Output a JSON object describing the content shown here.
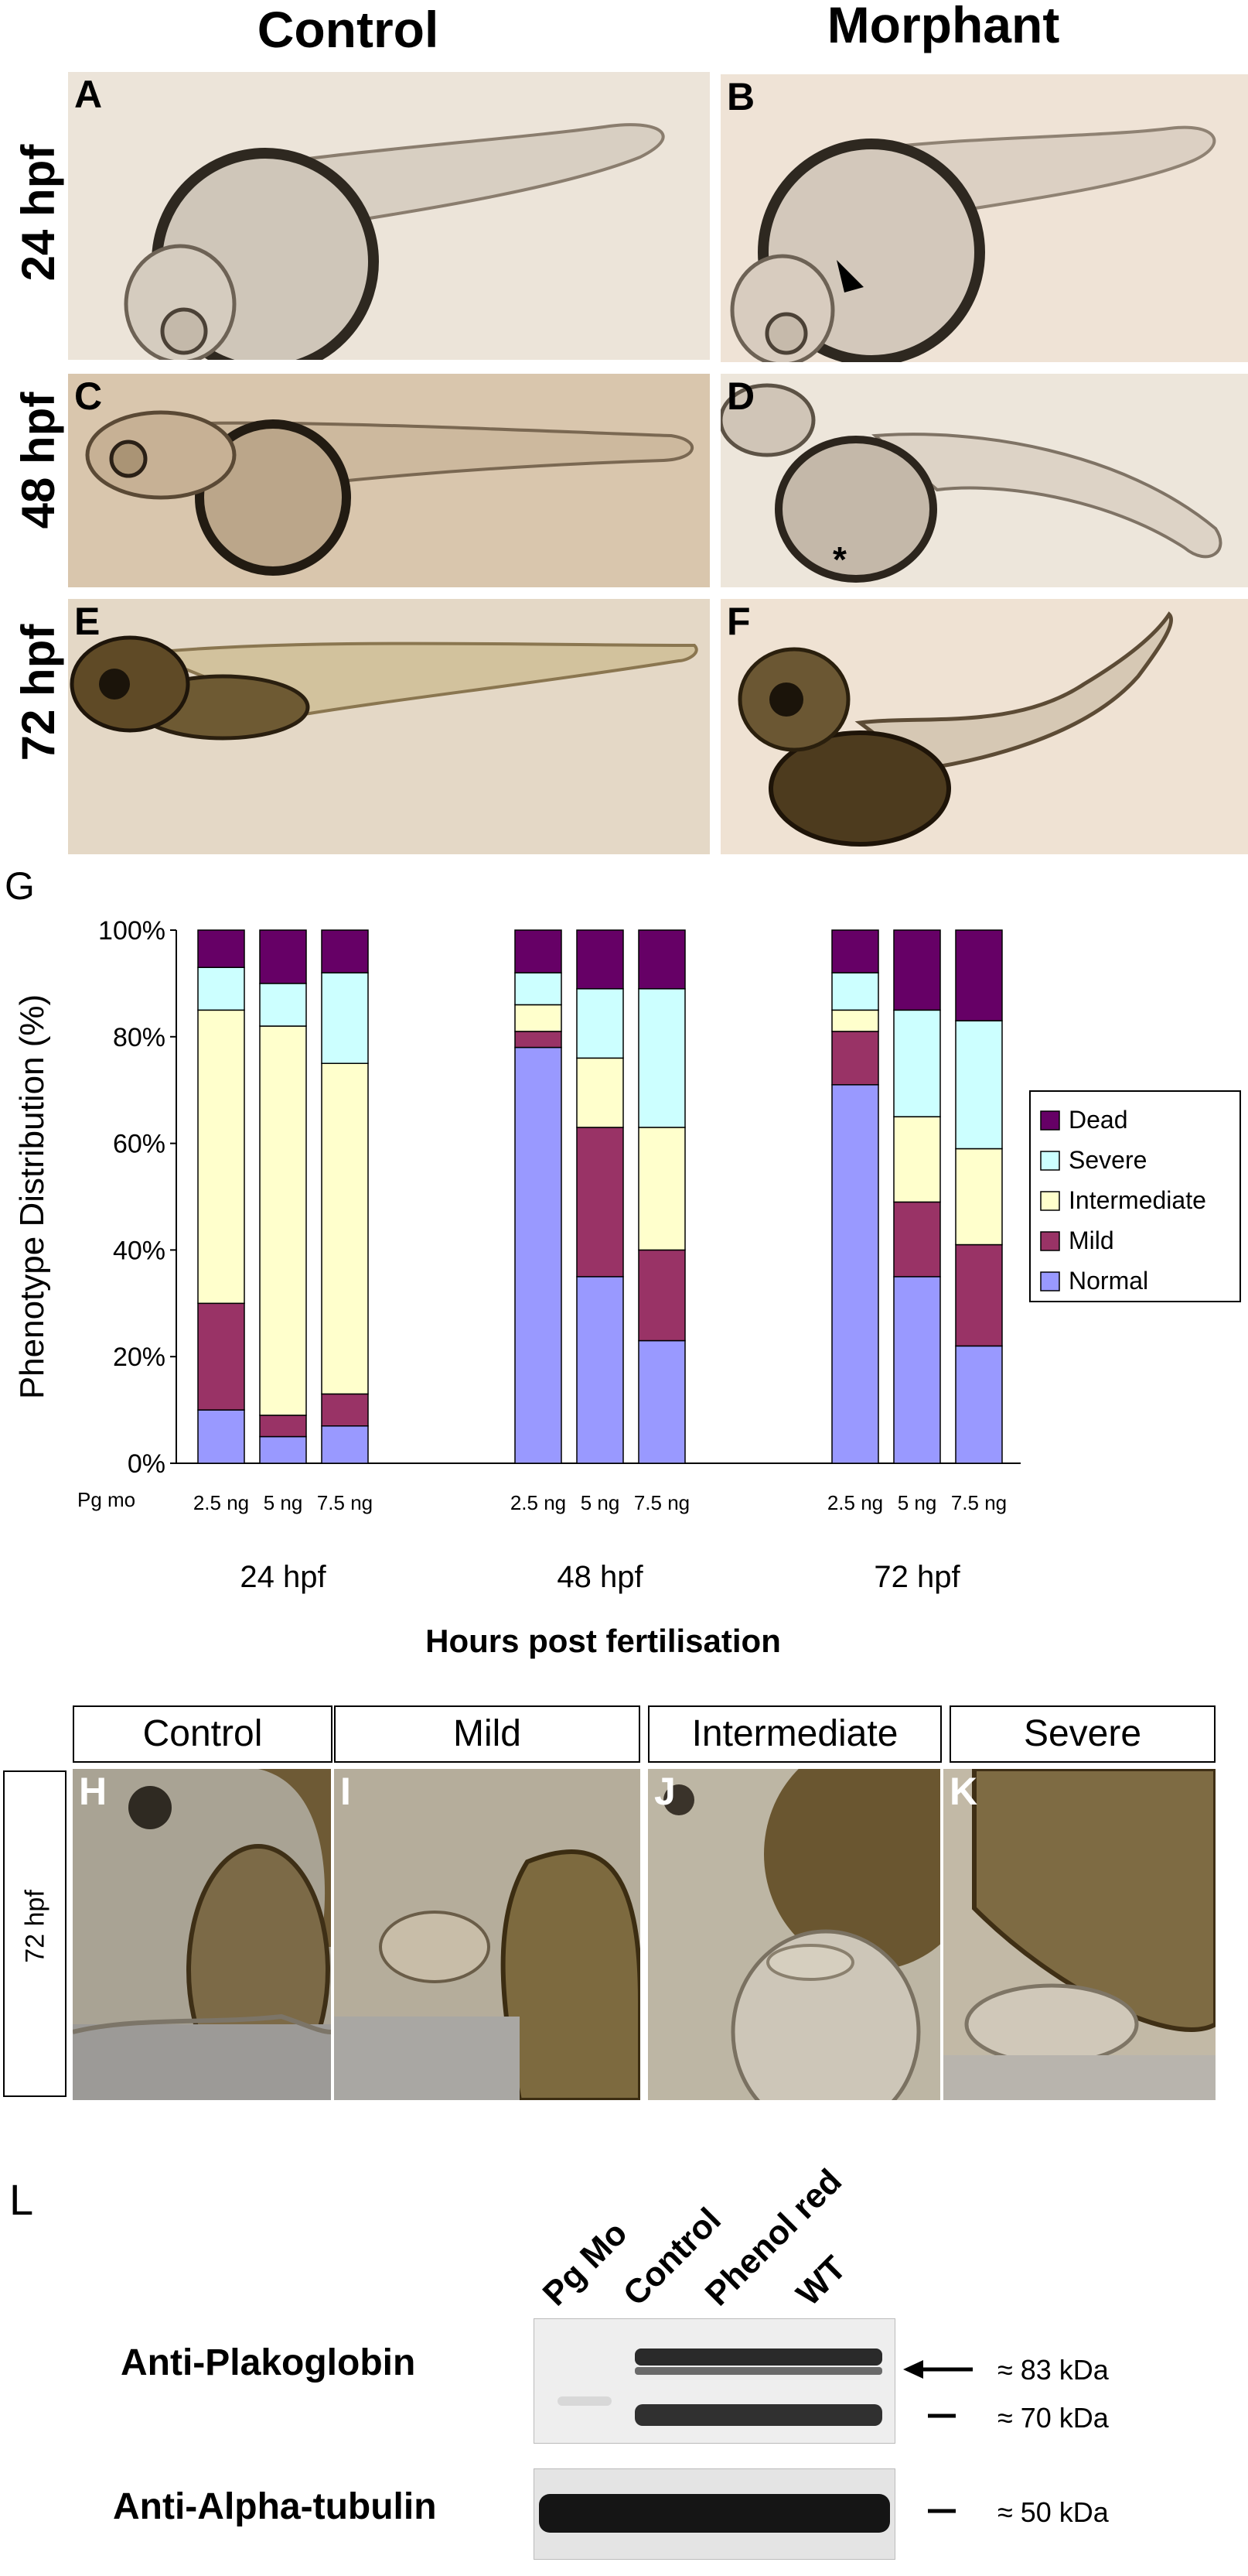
{
  "columns": {
    "control": "Control",
    "morphant": "Morphant"
  },
  "rows": [
    "24 hpf",
    "48 hpf",
    "72 hpf"
  ],
  "panels": [
    "A",
    "B",
    "C",
    "D",
    "E",
    "F"
  ],
  "panel_g_label": "G",
  "chart_data": {
    "type": "bar",
    "stacked": true,
    "ylabel": "Phenotype Distribution (%)",
    "xlabel": "Hours post fertilisation",
    "ylim": [
      0,
      100
    ],
    "y_ticks": [
      "0%",
      "20%",
      "40%",
      "60%",
      "80%",
      "100%"
    ],
    "pg_mo_label": "Pg mo",
    "group_labels": [
      "24 hpf",
      "48 hpf",
      "72 hpf"
    ],
    "dose_labels": [
      "2.5 ng",
      "5 ng",
      "7.5 ng"
    ],
    "categories": [
      "24 hpf 2.5 ng",
      "24 hpf 5 ng",
      "24 hpf 7.5 ng",
      "48 hpf 2.5 ng",
      "48 hpf 5 ng",
      "48 hpf 7.5 ng",
      "72 hpf 2.5 ng",
      "72 hpf 5 ng",
      "72 hpf 7.5 ng"
    ],
    "legend_position": "right",
    "series": [
      {
        "name": "Normal",
        "color": "#9999ff",
        "values": [
          10,
          5,
          7,
          78,
          35,
          23,
          71,
          35,
          22
        ]
      },
      {
        "name": "Mild",
        "color": "#993366",
        "values": [
          20,
          4,
          6,
          3,
          28,
          17,
          10,
          14,
          19
        ]
      },
      {
        "name": "Intermediate",
        "color": "#ffffcc",
        "values": [
          55,
          73,
          62,
          5,
          13,
          23,
          4,
          16,
          18
        ]
      },
      {
        "name": "Severe",
        "color": "#ccffff",
        "values": [
          8,
          8,
          17,
          6,
          13,
          26,
          7,
          20,
          24
        ]
      },
      {
        "name": "Dead",
        "color": "#660066",
        "values": [
          7,
          10,
          8,
          8,
          11,
          11,
          8,
          15,
          17
        ]
      }
    ]
  },
  "phenotype_boxes": [
    "Control",
    "Mild",
    "Intermediate",
    "Severe"
  ],
  "phenotype_panels": [
    "H",
    "I",
    "J",
    "K"
  ],
  "phenotype_row_label": "72 hpf",
  "western": {
    "label": "L",
    "lanes": [
      "Pg Mo",
      "Control",
      "Phenol red",
      "WT"
    ],
    "antibodies": [
      "Anti-Plakoglobin",
      "Anti-Alpha-tubulin"
    ],
    "sizes": [
      "≈ 83 kDa",
      "≈ 70 kDa",
      "≈ 50 kDa"
    ]
  }
}
